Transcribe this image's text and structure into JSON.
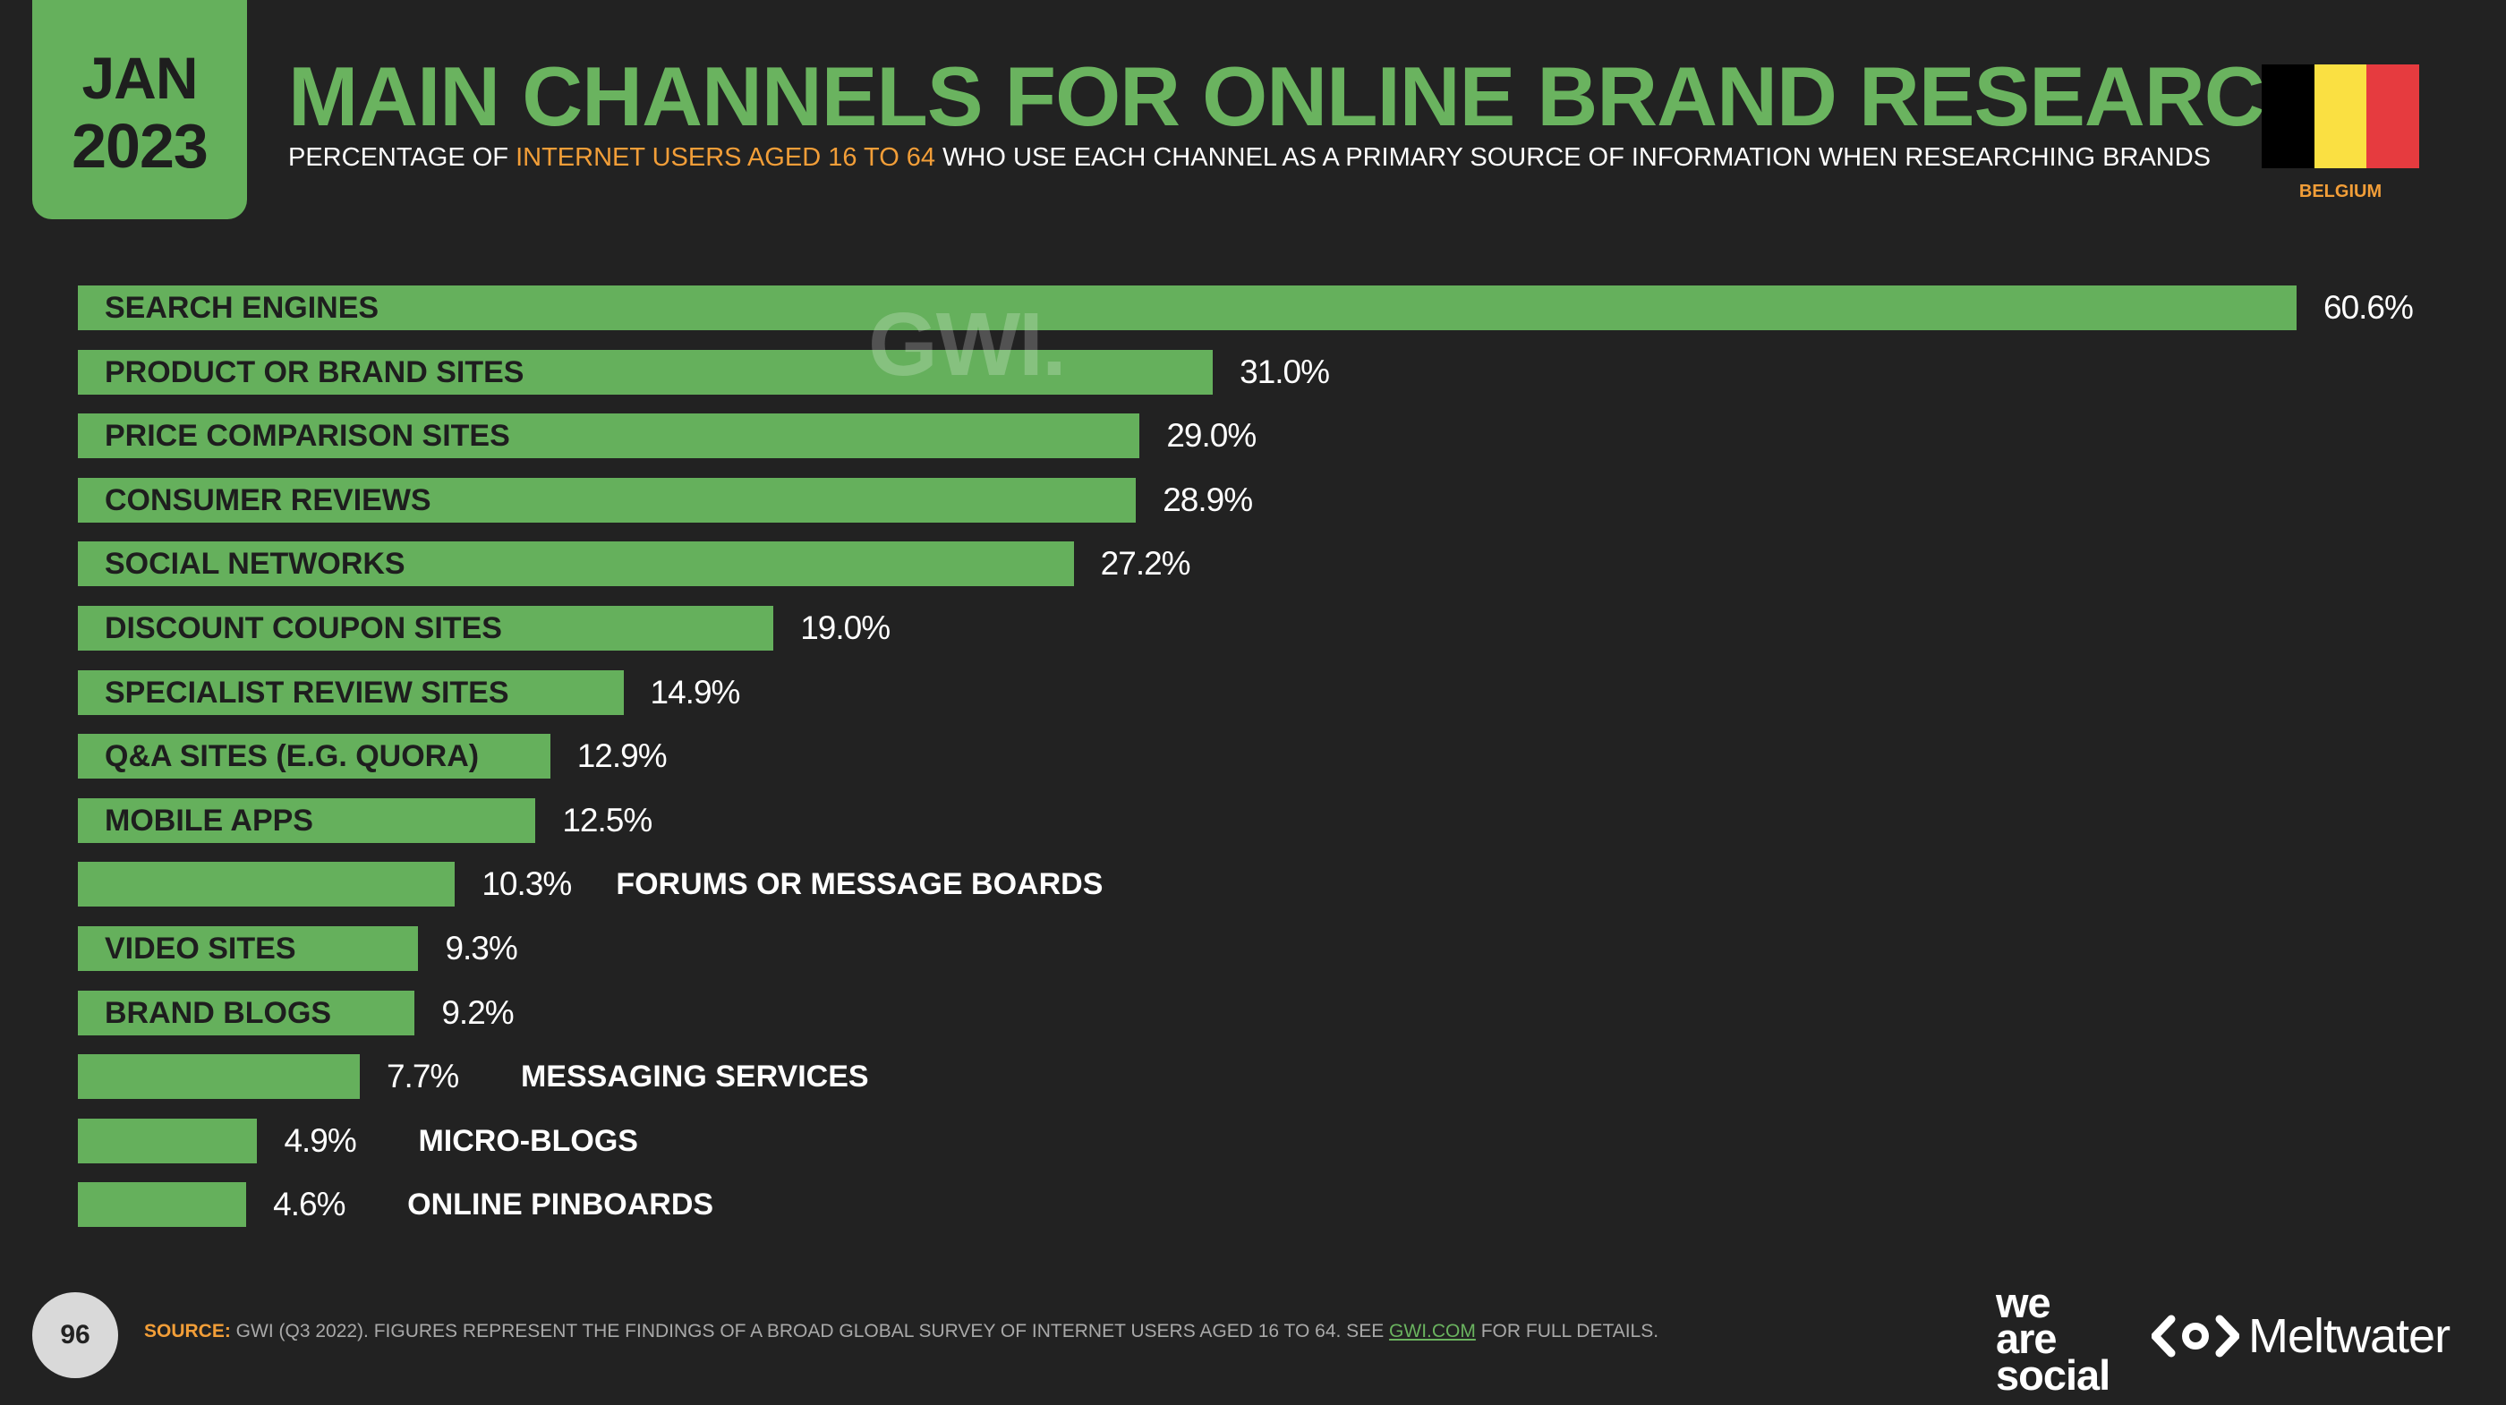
{
  "header": {
    "month": "JAN",
    "year": "2023",
    "title": "MAIN CHANNELS FOR ONLINE BRAND RESEARCH",
    "subtitle_pre": "PERCENTAGE OF ",
    "subtitle_highlight": "INTERNET USERS AGED 16 TO 64",
    "subtitle_post": " WHO USE EACH CHANNEL AS A PRIMARY SOURCE OF INFORMATION WHEN RESEARCHING BRANDS",
    "country": "BELGIUM",
    "flag_colors": [
      "#000000",
      "#FAE042",
      "#E63B3F"
    ]
  },
  "watermark": "GWI.",
  "chart_data": {
    "type": "bar",
    "orientation": "horizontal",
    "categories": [
      "SEARCH ENGINES",
      "PRODUCT OR BRAND SITES",
      "PRICE COMPARISON SITES",
      "CONSUMER REVIEWS",
      "SOCIAL NETWORKS",
      "DISCOUNT COUPON SITES",
      "SPECIALIST REVIEW SITES",
      "Q&A SITES (E.G. QUORA)",
      "MOBILE APPS",
      "FORUMS OR MESSAGE BOARDS",
      "VIDEO SITES",
      "BRAND BLOGS",
      "MESSAGING SERVICES",
      "MICRO-BLOGS",
      "ONLINE PINBOARDS"
    ],
    "values": [
      60.6,
      31.0,
      29.0,
      28.9,
      27.2,
      19.0,
      14.9,
      12.9,
      12.5,
      10.3,
      9.3,
      9.2,
      7.7,
      4.9,
      4.6
    ],
    "value_labels": [
      "60.6%",
      "31.0%",
      "29.0%",
      "28.9%",
      "27.2%",
      "19.0%",
      "14.9%",
      "12.9%",
      "12.5%",
      "10.3%",
      "9.3%",
      "9.2%",
      "7.7%",
      "4.9%",
      "4.6%"
    ],
    "label_inside": [
      true,
      true,
      true,
      true,
      true,
      true,
      true,
      true,
      true,
      false,
      true,
      true,
      false,
      false,
      false
    ],
    "xlim": [
      0,
      60.6
    ],
    "bar_color": "#65B05C",
    "grid": false,
    "legend": "none"
  },
  "footer": {
    "page_number": "96",
    "source_label": "SOURCE:",
    "source_text": " GWI (Q3 2022). FIGURES REPRESENT THE FINDINGS OF A BROAD GLOBAL SURVEY OF INTERNET USERS AGED 16 TO 64. SEE ",
    "source_link": "GWI.COM",
    "source_end": " FOR FULL DETAILS.",
    "brand1_line1": "we",
    "brand1_line2": "are",
    "brand1_line3": "social",
    "brand2": "Meltwater"
  }
}
